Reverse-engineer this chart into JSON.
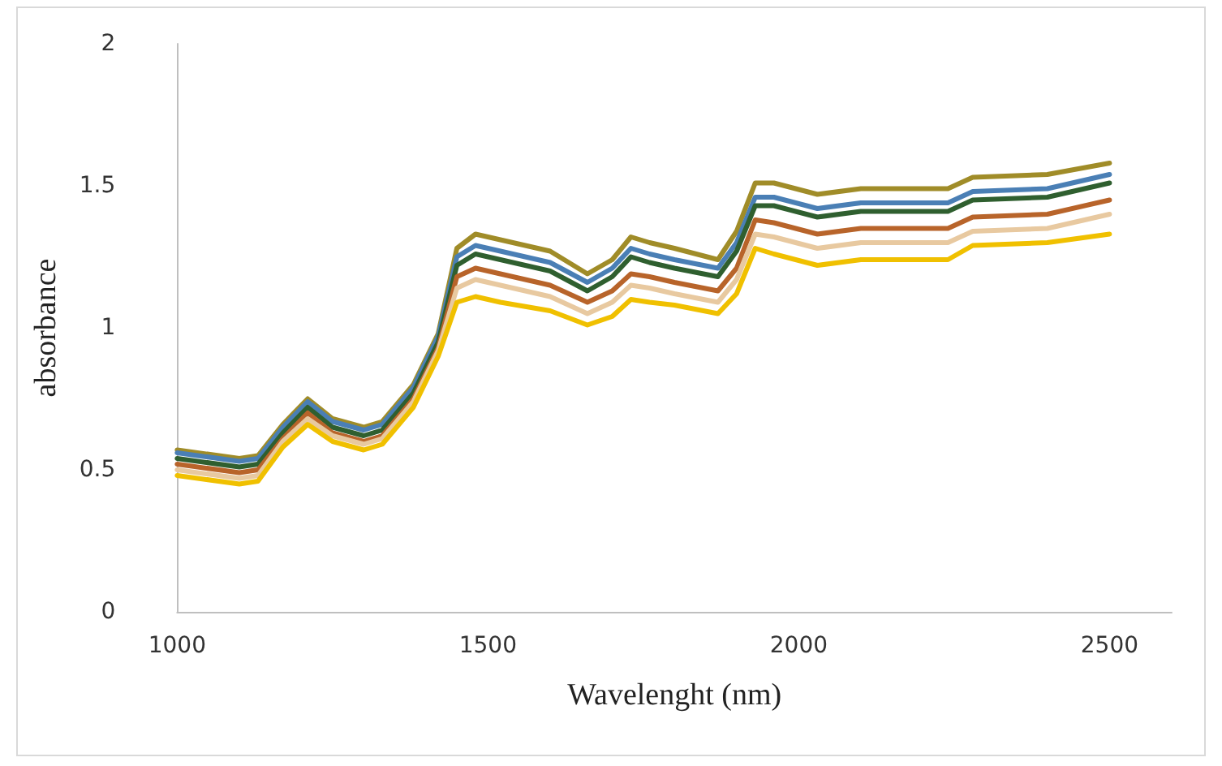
{
  "chart_data": {
    "type": "line",
    "xlabel": "Wavelenght (nm)",
    "ylabel": "absorbance",
    "x": [
      1000,
      1100,
      1130,
      1170,
      1210,
      1250,
      1300,
      1330,
      1380,
      1420,
      1450,
      1480,
      1520,
      1600,
      1660,
      1700,
      1730,
      1760,
      1800,
      1870,
      1900,
      1930,
      1960,
      2030,
      2100,
      2240,
      2280,
      2400,
      2500
    ],
    "series": [
      {
        "color": "#a08c28",
        "values": [
          0.57,
          0.54,
          0.55,
          0.66,
          0.75,
          0.68,
          0.65,
          0.67,
          0.8,
          0.98,
          1.28,
          1.33,
          1.31,
          1.27,
          1.19,
          1.24,
          1.32,
          1.3,
          1.28,
          1.24,
          1.34,
          1.51,
          1.51,
          1.47,
          1.49,
          1.49,
          1.53,
          1.54,
          1.58
        ]
      },
      {
        "color": "#4a7fb5",
        "values": [
          0.56,
          0.53,
          0.54,
          0.65,
          0.74,
          0.67,
          0.64,
          0.66,
          0.79,
          0.97,
          1.25,
          1.29,
          1.27,
          1.23,
          1.16,
          1.21,
          1.28,
          1.26,
          1.24,
          1.21,
          1.3,
          1.46,
          1.46,
          1.42,
          1.44,
          1.44,
          1.48,
          1.49,
          1.54
        ]
      },
      {
        "color": "#2f5f2f",
        "values": [
          0.54,
          0.51,
          0.52,
          0.63,
          0.72,
          0.65,
          0.62,
          0.64,
          0.77,
          0.95,
          1.22,
          1.26,
          1.24,
          1.2,
          1.13,
          1.18,
          1.25,
          1.23,
          1.21,
          1.18,
          1.27,
          1.43,
          1.43,
          1.39,
          1.41,
          1.41,
          1.45,
          1.46,
          1.51
        ]
      },
      {
        "color": "#b8642a",
        "values": [
          0.52,
          0.49,
          0.5,
          0.61,
          0.7,
          0.63,
          0.6,
          0.62,
          0.75,
          0.93,
          1.18,
          1.21,
          1.19,
          1.15,
          1.09,
          1.13,
          1.19,
          1.18,
          1.16,
          1.13,
          1.21,
          1.38,
          1.37,
          1.33,
          1.35,
          1.35,
          1.39,
          1.4,
          1.45
        ]
      },
      {
        "color": "#e8c9a0",
        "values": [
          0.5,
          0.47,
          0.48,
          0.6,
          0.68,
          0.62,
          0.59,
          0.61,
          0.74,
          0.92,
          1.14,
          1.17,
          1.15,
          1.11,
          1.05,
          1.09,
          1.15,
          1.14,
          1.12,
          1.09,
          1.17,
          1.33,
          1.32,
          1.28,
          1.3,
          1.3,
          1.34,
          1.35,
          1.4
        ]
      },
      {
        "color": "#f0c000",
        "values": [
          0.48,
          0.45,
          0.46,
          0.58,
          0.66,
          0.6,
          0.57,
          0.59,
          0.72,
          0.9,
          1.09,
          1.11,
          1.09,
          1.06,
          1.01,
          1.04,
          1.1,
          1.09,
          1.08,
          1.05,
          1.12,
          1.28,
          1.26,
          1.22,
          1.24,
          1.24,
          1.29,
          1.3,
          1.33
        ]
      }
    ],
    "xlim": [
      1000,
      2600
    ],
    "xticks": [
      1000,
      1500,
      2000,
      2500
    ],
    "ylim": [
      0,
      2
    ],
    "yticks": [
      0,
      0.5,
      1,
      1.5,
      2
    ],
    "marker": "none",
    "line_style": "solid"
  }
}
